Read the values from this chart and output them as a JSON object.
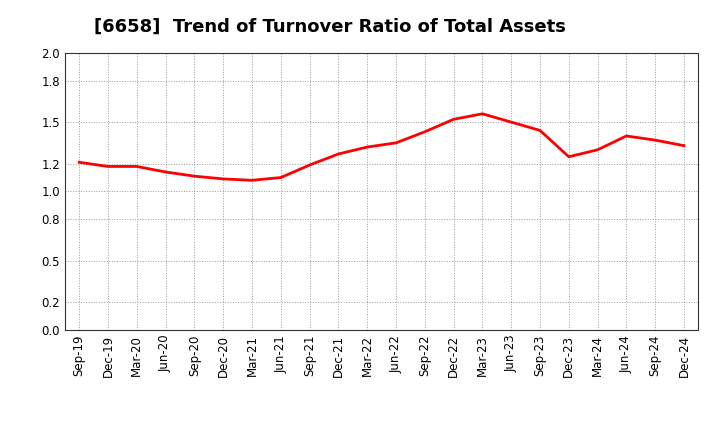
{
  "title": "[6658]  Trend of Turnover Ratio of Total Assets",
  "x_labels": [
    "Sep-19",
    "Dec-19",
    "Mar-20",
    "Jun-20",
    "Sep-20",
    "Dec-20",
    "Mar-21",
    "Jun-21",
    "Sep-21",
    "Dec-21",
    "Mar-22",
    "Jun-22",
    "Sep-22",
    "Dec-22",
    "Mar-23",
    "Jun-23",
    "Sep-23",
    "Dec-23",
    "Mar-24",
    "Jun-24",
    "Sep-24",
    "Dec-24"
  ],
  "y_values": [
    1.21,
    1.18,
    1.18,
    1.14,
    1.11,
    1.09,
    1.08,
    1.1,
    1.19,
    1.27,
    1.32,
    1.35,
    1.43,
    1.52,
    1.56,
    1.5,
    1.44,
    1.25,
    1.3,
    1.4,
    1.37,
    1.33
  ],
  "ylim": [
    0.0,
    2.0
  ],
  "yticks": [
    0.0,
    0.2,
    0.5,
    0.8,
    1.0,
    1.2,
    1.5,
    1.8,
    2.0
  ],
  "line_color": "#ff0000",
  "line_width": 2.0,
  "background_color": "#ffffff",
  "grid_color": "#999999",
  "title_fontsize": 13,
  "tick_fontsize": 8.5
}
